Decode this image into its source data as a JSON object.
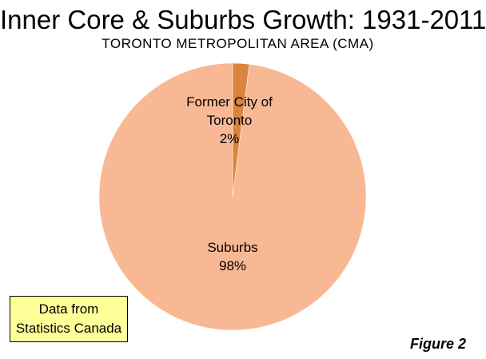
{
  "title": "Inner Core & Suburbs Growth: 1931-2011",
  "subtitle": "TORONTO METROPOLITAN AREA (CMA)",
  "source_note": {
    "line1": "Data from",
    "line2": "Statistics Canada"
  },
  "figure_label": "Figure 2",
  "chart_data": {
    "type": "pie",
    "slices": [
      {
        "label_lines": [
          "Former City of",
          "Toronto"
        ],
        "value": 2,
        "value_label": "2%",
        "color": "#d9843f"
      },
      {
        "label_lines": [
          "Suburbs"
        ],
        "value": 98,
        "value_label": "98%",
        "color": "#f8b894"
      }
    ],
    "start_angle_deg": 0,
    "direction": "clockwise"
  }
}
